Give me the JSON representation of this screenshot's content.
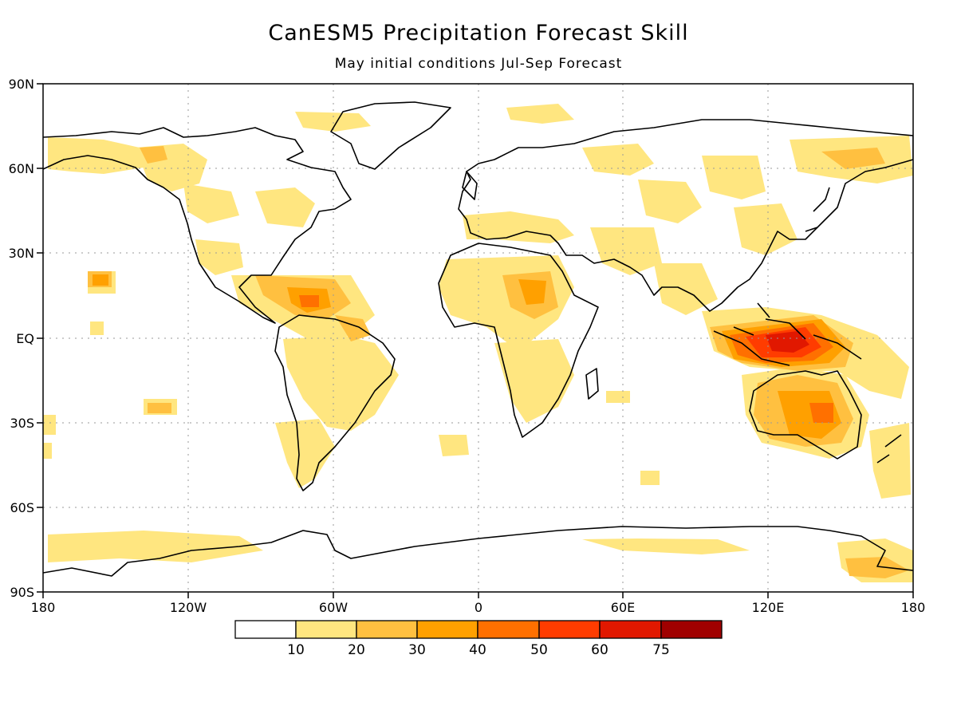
{
  "title": "CanESM5 Precipitation Forecast Skill",
  "subtitle": "May initial conditions   Jul-Sep Forecast",
  "lat_labels": [
    "90N",
    "60N",
    "30N",
    "EQ",
    "30S",
    "60S",
    "90S"
  ],
  "lon_labels": [
    "180",
    "120W",
    "60W",
    "0",
    "60E",
    "120E",
    "180"
  ],
  "colorbar": {
    "colors": [
      "#ffffff",
      "#ffe680",
      "#ffc040",
      "#ffa000",
      "#ff7000",
      "#ff3c00",
      "#e11800",
      "#a00000"
    ],
    "labels": [
      "10",
      "20",
      "30",
      "40",
      "50",
      "60",
      "75"
    ]
  },
  "colors": {
    "coast": "#000000",
    "grid": "#9a9a9a"
  }
}
